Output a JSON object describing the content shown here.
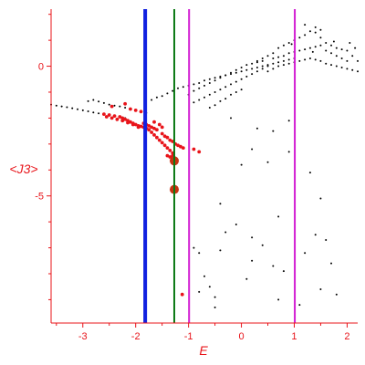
{
  "chart_data": {
    "type": "scatter",
    "xlabel": "E",
    "ylabel": "<J3>",
    "xlim": [
      -3.6,
      2.2
    ],
    "ylim": [
      -9.9,
      2.2
    ],
    "xticks": [
      -3,
      -2,
      -1,
      0,
      1,
      2
    ],
    "yticks": [
      0,
      -5
    ],
    "grid": false,
    "colors": {
      "axes": "#e8141a",
      "black_points": "#000000",
      "red_points": "#e8141a",
      "blue_line": "#1020e0",
      "green_line": "#0b7a14",
      "magenta_line": "#d21cd2",
      "highlight_points": "#c83210"
    },
    "vertical_lines": [
      {
        "x": -1.82,
        "color": "#1020e0"
      },
      {
        "x": -1.27,
        "color": "#0b7a14"
      },
      {
        "x": -0.99,
        "color": "#d21cd2"
      },
      {
        "x": 1.01,
        "color": "#d21cd2"
      }
    ],
    "series": [
      {
        "color": "#000000",
        "points": [
          [
            -3.6,
            -1.48
          ],
          [
            -3.5,
            -1.52
          ],
          [
            -3.4,
            -1.55
          ],
          [
            -3.3,
            -1.58
          ],
          [
            -3.2,
            -1.62
          ],
          [
            -3.1,
            -1.66
          ],
          [
            -3.0,
            -1.7
          ],
          [
            -2.9,
            -1.74
          ],
          [
            -2.8,
            -1.78
          ],
          [
            -2.7,
            -1.82
          ],
          [
            -2.6,
            -1.86
          ],
          [
            -2.5,
            -1.9
          ],
          [
            -2.4,
            -1.93
          ],
          [
            -2.3,
            -1.96
          ],
          [
            -2.2,
            -2.0
          ],
          [
            -2.9,
            -1.35
          ],
          [
            -2.8,
            -1.3
          ],
          [
            -2.7,
            -1.36
          ],
          [
            -2.6,
            -1.42
          ],
          [
            -2.5,
            -1.48
          ],
          [
            -2.4,
            -1.52
          ],
          [
            -2.3,
            -1.55
          ],
          [
            -2.2,
            -1.6
          ],
          [
            -2.1,
            -1.65
          ],
          [
            -2.0,
            -1.7
          ],
          [
            -1.9,
            -1.75
          ],
          [
            -1.8,
            -1.8
          ],
          [
            -1.7,
            -1.3
          ],
          [
            -1.6,
            -1.2
          ],
          [
            -1.5,
            -1.15
          ],
          [
            -1.4,
            -1.05
          ],
          [
            -1.3,
            -0.95
          ],
          [
            -1.2,
            -0.85
          ],
          [
            -1.1,
            -0.8
          ],
          [
            -1.0,
            -0.75
          ],
          [
            -0.9,
            -0.7
          ],
          [
            -0.8,
            -0.65
          ],
          [
            -0.7,
            -0.55
          ],
          [
            -0.6,
            -0.5
          ],
          [
            -0.5,
            -0.45
          ],
          [
            -0.4,
            -0.4
          ],
          [
            -0.3,
            -0.35
          ],
          [
            -0.2,
            -0.3
          ],
          [
            -0.1,
            -0.25
          ],
          [
            0.0,
            -0.2
          ],
          [
            0.1,
            -0.15
          ],
          [
            0.2,
            -0.1
          ],
          [
            0.3,
            -0.05
          ],
          [
            0.4,
            0.0
          ],
          [
            0.5,
            0.05
          ],
          [
            0.6,
            0.1
          ],
          [
            0.7,
            0.15
          ],
          [
            0.8,
            0.2
          ],
          [
            0.9,
            0.25
          ],
          [
            1.0,
            0.3
          ],
          [
            -1.0,
            -1.1
          ],
          [
            -0.9,
            -0.95
          ],
          [
            -0.8,
            -0.85
          ],
          [
            -0.7,
            -0.75
          ],
          [
            -0.6,
            -0.65
          ],
          [
            -0.5,
            -0.55
          ],
          [
            -0.4,
            -0.45
          ],
          [
            -0.3,
            -0.35
          ],
          [
            -0.2,
            -0.25
          ],
          [
            -0.1,
            -0.15
          ],
          [
            0.0,
            -0.05
          ],
          [
            0.1,
            0.05
          ],
          [
            0.2,
            0.1
          ],
          [
            0.3,
            0.15
          ],
          [
            0.4,
            0.2
          ],
          [
            -0.9,
            -1.4
          ],
          [
            -0.8,
            -1.3
          ],
          [
            -0.7,
            -1.2
          ],
          [
            -0.6,
            -1.1
          ],
          [
            -0.5,
            -1.0
          ],
          [
            -0.4,
            -0.9
          ],
          [
            -0.3,
            -0.8
          ],
          [
            -0.2,
            -0.7
          ],
          [
            -0.1,
            -0.6
          ],
          [
            0.0,
            -0.5
          ],
          [
            0.1,
            -0.4
          ],
          [
            0.2,
            -0.3
          ],
          [
            0.3,
            -0.2
          ],
          [
            0.4,
            -0.1
          ],
          [
            0.5,
            0.0
          ],
          [
            -0.6,
            -1.6
          ],
          [
            -0.5,
            -1.5
          ],
          [
            -0.4,
            -1.35
          ],
          [
            -0.3,
            -1.25
          ],
          [
            -0.2,
            -1.1
          ],
          [
            -0.1,
            -1.0
          ],
          [
            0.0,
            -0.9
          ],
          [
            0.3,
            0.2
          ],
          [
            0.4,
            0.3
          ],
          [
            0.5,
            0.4
          ],
          [
            0.6,
            0.5
          ],
          [
            0.7,
            0.7
          ],
          [
            0.8,
            0.8
          ],
          [
            0.9,
            0.9
          ],
          [
            1.0,
            1.0
          ],
          [
            1.1,
            1.1
          ],
          [
            1.2,
            1.2
          ],
          [
            1.3,
            1.35
          ],
          [
            1.4,
            1.3
          ],
          [
            1.5,
            1.1
          ],
          [
            1.6,
            0.9
          ],
          [
            1.7,
            0.8
          ],
          [
            1.8,
            0.7
          ],
          [
            1.9,
            0.65
          ],
          [
            2.0,
            0.6
          ],
          [
            2.1,
            0.4
          ],
          [
            2.2,
            0.2
          ],
          [
            0.5,
            -0.2
          ],
          [
            0.6,
            -0.1
          ],
          [
            0.7,
            0.0
          ],
          [
            0.8,
            0.05
          ],
          [
            0.9,
            0.1
          ],
          [
            1.0,
            0.15
          ],
          [
            1.1,
            0.2
          ],
          [
            1.2,
            0.25
          ],
          [
            1.3,
            0.3
          ],
          [
            1.4,
            0.25
          ],
          [
            1.5,
            0.2
          ],
          [
            1.6,
            0.1
          ],
          [
            1.7,
            0.05
          ],
          [
            1.8,
            0.0
          ],
          [
            1.9,
            -0.05
          ],
          [
            2.0,
            -0.1
          ],
          [
            2.1,
            -0.15
          ],
          [
            2.2,
            -0.2
          ],
          [
            0.6,
            0.3
          ],
          [
            0.7,
            0.35
          ],
          [
            0.8,
            0.4
          ],
          [
            0.9,
            0.5
          ],
          [
            1.0,
            0.55
          ],
          [
            1.1,
            0.6
          ],
          [
            1.2,
            0.65
          ],
          [
            1.3,
            0.7
          ],
          [
            1.4,
            0.75
          ],
          [
            1.5,
            0.8
          ],
          [
            1.6,
            0.6
          ],
          [
            1.7,
            0.5
          ],
          [
            1.8,
            0.4
          ],
          [
            1.9,
            0.3
          ],
          [
            2.0,
            0.2
          ],
          [
            1.4,
            1.5
          ],
          [
            1.5,
            1.4
          ],
          [
            1.2,
            1.6
          ],
          [
            0.95,
            0.85
          ],
          [
            1.35,
            0.55
          ],
          [
            1.75,
            0.95
          ],
          [
            2.05,
            0.9
          ],
          [
            2.15,
            0.7
          ],
          [
            -0.1,
            -6.1
          ],
          [
            0.2,
            -6.6
          ],
          [
            0.4,
            -6.9
          ],
          [
            -0.4,
            -7.1
          ],
          [
            -0.3,
            -6.4
          ],
          [
            0.6,
            -7.7
          ],
          [
            0.8,
            -7.9
          ],
          [
            -0.6,
            -8.5
          ],
          [
            -0.8,
            -7.2
          ],
          [
            -0.9,
            -7.0
          ],
          [
            -0.7,
            -8.1
          ],
          [
            0.1,
            -8.2
          ],
          [
            0.2,
            -7.5
          ],
          [
            0.7,
            -5.8
          ],
          [
            1.3,
            -4.1
          ],
          [
            1.5,
            -5.1
          ],
          [
            1.4,
            -6.5
          ],
          [
            1.6,
            -6.7
          ],
          [
            1.7,
            -7.6
          ],
          [
            1.2,
            -7.2
          ],
          [
            0.5,
            -3.7
          ],
          [
            0.9,
            -3.3
          ],
          [
            0.6,
            -2.5
          ],
          [
            0.9,
            -2.1
          ],
          [
            0.3,
            -2.4
          ],
          [
            -0.2,
            -2.0
          ],
          [
            -0.4,
            -5.3
          ],
          [
            -0.5,
            -8.9
          ],
          [
            -0.8,
            -8.7
          ],
          [
            -0.5,
            -9.3
          ],
          [
            1.1,
            -9.2
          ],
          [
            1.5,
            -8.6
          ],
          [
            1.8,
            -8.8
          ],
          [
            0.7,
            -9.0
          ],
          [
            0.0,
            -3.8
          ],
          [
            0.2,
            -3.2
          ]
        ]
      },
      {
        "color": "#e8141a",
        "points": [
          [
            -2.6,
            -1.85
          ],
          [
            -2.5,
            -1.88
          ],
          [
            -2.4,
            -1.92
          ],
          [
            -2.3,
            -1.95
          ],
          [
            -2.25,
            -2.0
          ],
          [
            -2.2,
            -2.05
          ],
          [
            -2.15,
            -2.1
          ],
          [
            -2.1,
            -2.15
          ],
          [
            -2.05,
            -2.2
          ],
          [
            -2.0,
            -2.25
          ],
          [
            -1.95,
            -2.3
          ],
          [
            -1.9,
            -2.32
          ],
          [
            -1.85,
            -2.35
          ],
          [
            -2.55,
            -1.95
          ],
          [
            -2.45,
            -2.0
          ],
          [
            -2.35,
            -2.05
          ],
          [
            -2.25,
            -2.1
          ],
          [
            -2.15,
            -2.18
          ],
          [
            -2.05,
            -2.25
          ],
          [
            -1.95,
            -2.35
          ],
          [
            -1.8,
            -2.4
          ],
          [
            -1.75,
            -2.45
          ],
          [
            -1.7,
            -2.55
          ],
          [
            -1.65,
            -2.65
          ],
          [
            -1.6,
            -2.75
          ],
          [
            -1.55,
            -2.85
          ],
          [
            -1.5,
            -2.95
          ],
          [
            -1.45,
            -3.05
          ],
          [
            -1.4,
            -3.15
          ],
          [
            -1.35,
            -3.25
          ],
          [
            -1.3,
            -3.35
          ],
          [
            -1.85,
            -2.2
          ],
          [
            -1.8,
            -2.25
          ],
          [
            -1.75,
            -2.3
          ],
          [
            -1.7,
            -2.35
          ],
          [
            -1.65,
            -2.4
          ],
          [
            -1.6,
            -2.45
          ],
          [
            -1.5,
            -2.6
          ],
          [
            -1.45,
            -2.7
          ],
          [
            -1.4,
            -2.75
          ],
          [
            -1.35,
            -2.85
          ],
          [
            -1.3,
            -2.9
          ],
          [
            -1.25,
            -3.0
          ],
          [
            -1.2,
            -3.05
          ],
          [
            -1.15,
            -3.1
          ],
          [
            -1.1,
            -3.15
          ],
          [
            -2.1,
            -1.65
          ],
          [
            -2.0,
            -1.7
          ],
          [
            -1.9,
            -1.75
          ],
          [
            -2.2,
            -1.45
          ],
          [
            -2.45,
            -1.55
          ],
          [
            -1.4,
            -3.45
          ],
          [
            -1.35,
            -3.5
          ],
          [
            -1.3,
            -3.45
          ],
          [
            -0.9,
            -3.2
          ],
          [
            -0.8,
            -3.3
          ],
          [
            -1.65,
            -2.15
          ],
          [
            -1.55,
            -2.25
          ],
          [
            -1.5,
            -2.35
          ]
        ]
      },
      {
        "color": "#c83210",
        "points": [
          [
            -1.27,
            -3.65
          ],
          [
            -1.27,
            -4.75
          ]
        ]
      },
      {
        "color": "#e8141a",
        "points": [
          [
            -1.12,
            -8.8
          ]
        ]
      }
    ]
  }
}
